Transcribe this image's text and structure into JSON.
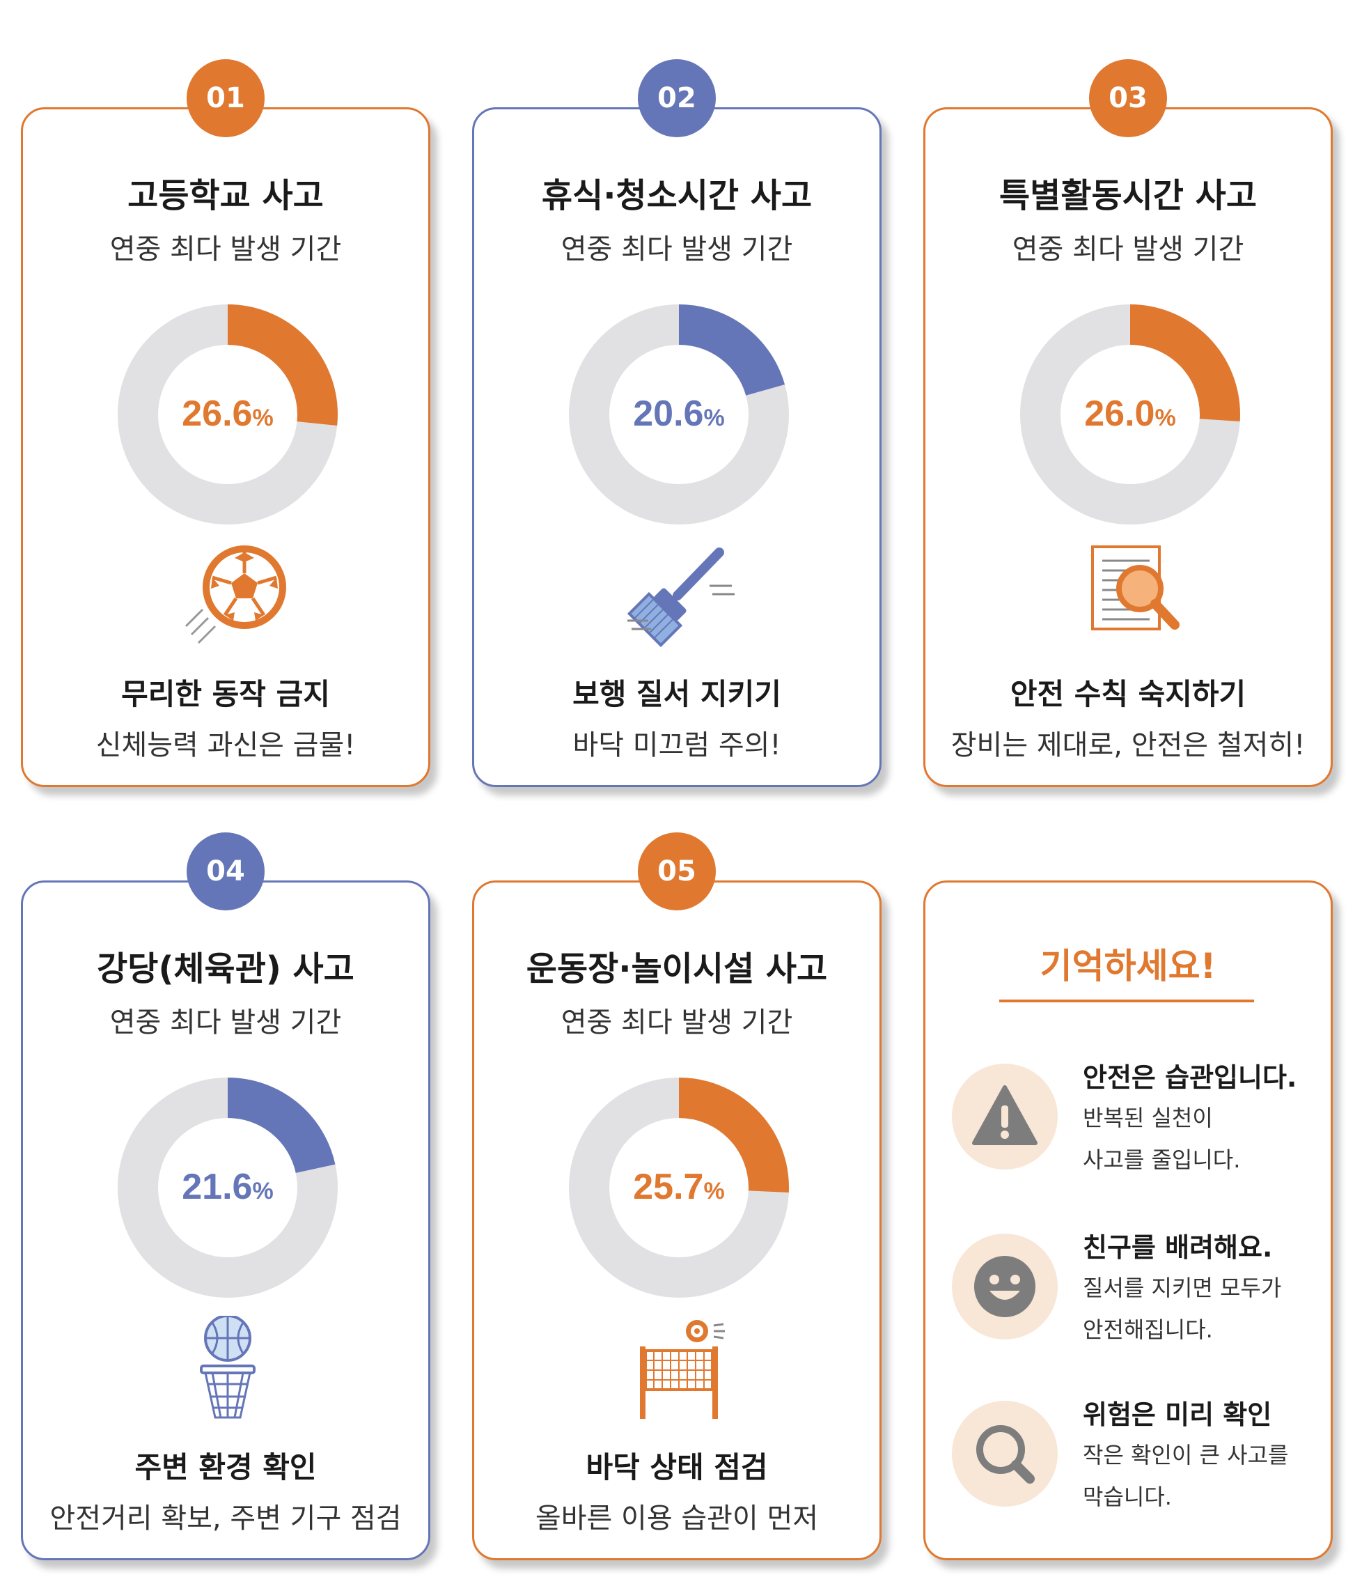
{
  "colors": {
    "orange": "#e0782f",
    "blue": "#6576b8",
    "track": "#e1e1e3"
  },
  "chart_data": [
    {
      "type": "pie",
      "number": "01",
      "title": "고등학교 사고",
      "subtitle": "연중 최다 발생 기간",
      "value": 26.6,
      "label": "26.6",
      "unit": "%",
      "accent": "orange",
      "icon": "soccer-ball-icon",
      "tip_title": "무리한 동작 금지",
      "tip_desc": "신체능력 과신은 금물!"
    },
    {
      "type": "pie",
      "number": "02",
      "title": "휴식·청소시간 사고",
      "subtitle": "연중 최다 발생 기간",
      "value": 20.6,
      "label": "20.6",
      "unit": "%",
      "accent": "blue",
      "icon": "broom-icon",
      "tip_title": "보행 질서 지키기",
      "tip_desc": "바닥 미끄럼 주의!"
    },
    {
      "type": "pie",
      "number": "03",
      "title": "특별활동시간 사고",
      "subtitle": "연중 최다 발생 기간",
      "value": 26.0,
      "label": "26.0",
      "unit": "%",
      "accent": "orange",
      "icon": "document-magnifier-icon",
      "tip_title": "안전 수칙 숙지하기",
      "tip_desc": "장비는 제대로, 안전은 철저히!"
    },
    {
      "type": "pie",
      "number": "04",
      "title": "강당(체육관) 사고",
      "subtitle": "연중 최다 발생 기간",
      "value": 21.6,
      "label": "21.6",
      "unit": "%",
      "accent": "blue",
      "icon": "basketball-hoop-icon",
      "tip_title": "주변 환경 확인",
      "tip_desc": "안전거리 확보, 주변 기구 점검"
    },
    {
      "type": "pie",
      "number": "05",
      "title": "운동장·놀이시설 사고",
      "subtitle": "연중 최다 발생 기간",
      "value": 25.7,
      "label": "25.7",
      "unit": "%",
      "accent": "orange",
      "icon": "volleyball-net-icon",
      "tip_title": "바닥 상태 점검",
      "tip_desc": "올바른 이용 습관이 먼저"
    }
  ],
  "remember": {
    "title": "기억하세요!",
    "items": [
      {
        "icon": "warning-icon",
        "title": "안전은 습관입니다.",
        "line1": "반복된 실천이",
        "line2": "사고를 줄입니다."
      },
      {
        "icon": "smiley-icon",
        "title": "친구를 배려해요.",
        "line1": "질서를 지키면 모두가",
        "line2": "안전해집니다."
      },
      {
        "icon": "magnifier-icon",
        "title": "위험은 미리 확인",
        "line1": "작은 확인이 큰 사고를",
        "line2": "막습니다."
      }
    ]
  }
}
